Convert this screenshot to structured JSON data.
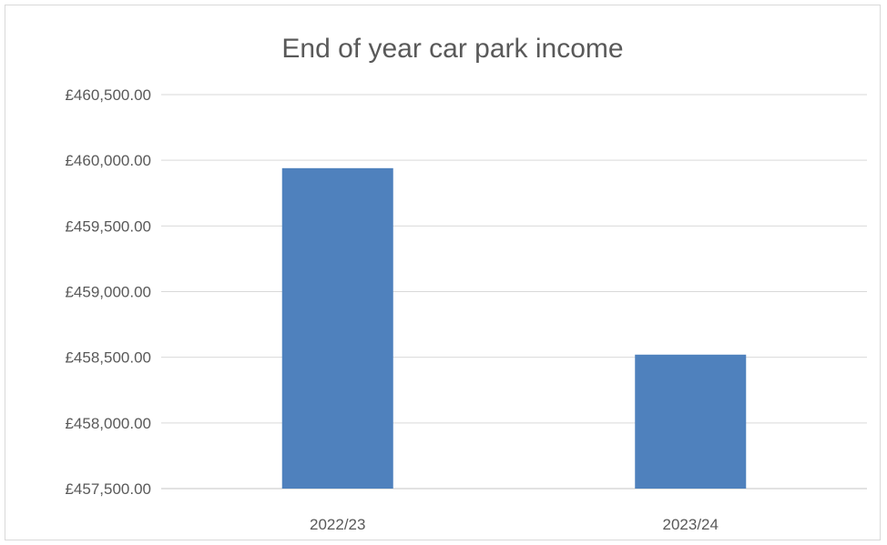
{
  "chart_data": {
    "type": "bar",
    "title": "End of year car park income",
    "categories": [
      "2022/23",
      "2023/24"
    ],
    "values": [
      459940,
      458520
    ],
    "xlabel": "",
    "ylabel": "",
    "ylim": [
      457500,
      460500
    ],
    "ytick_step": 500,
    "ytick_labels": [
      "£457,500.00",
      "£458,000.00",
      "£458,500.00",
      "£459,000.00",
      "£459,500.00",
      "£460,000.00",
      "£460,500.00"
    ],
    "grid": true,
    "legend": "none",
    "bar_color": "#4f81bd",
    "grid_color": "#d9d9d9"
  }
}
